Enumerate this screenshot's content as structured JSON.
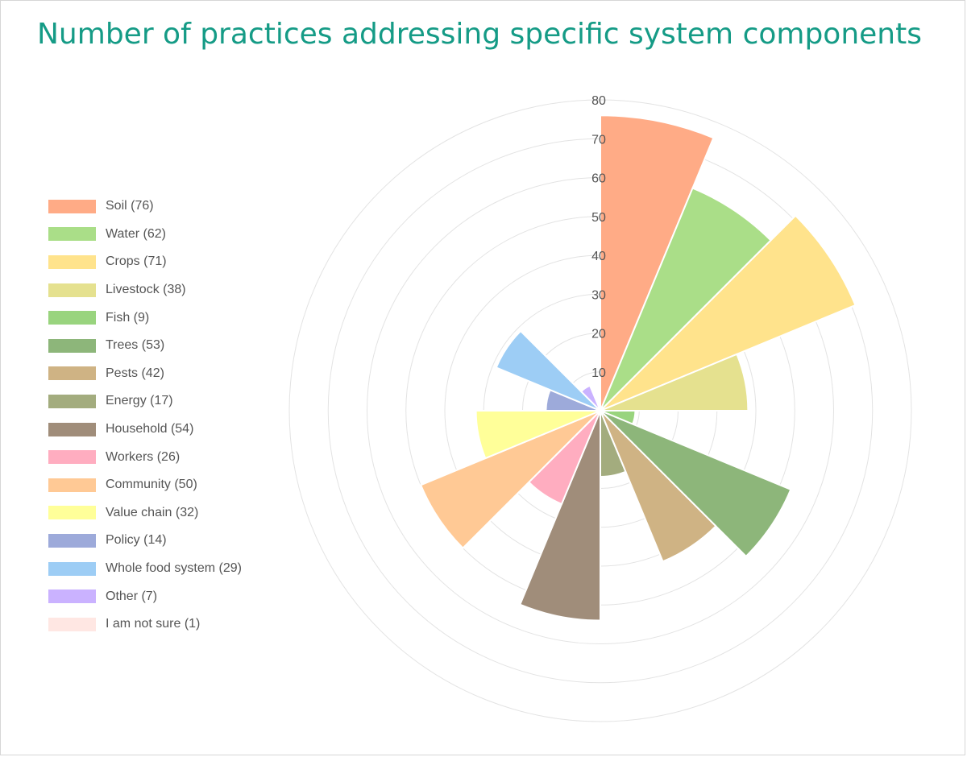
{
  "chart_data": {
    "type": "polar-area",
    "title": "Number of practices addressing specific system components",
    "rlim": [
      0,
      80
    ],
    "r_ticks": [
      10,
      20,
      30,
      40,
      50,
      60,
      70,
      80
    ],
    "grid": true,
    "legend_position": "left",
    "categories": [
      "Soil",
      "Water",
      "Crops",
      "Livestock",
      "Fish",
      "Trees",
      "Pests",
      "Energy",
      "Household",
      "Workers",
      "Community",
      "Value chain",
      "Policy",
      "Whole food system",
      "Other",
      "I am not sure"
    ],
    "values": [
      76,
      62,
      71,
      38,
      9,
      53,
      42,
      17,
      54,
      26,
      50,
      32,
      14,
      29,
      7,
      1
    ],
    "legend_labels": [
      "Soil (76)",
      "Water (62)",
      "Crops (71)",
      "Livestock (38)",
      "Fish (9)",
      "Trees (53)",
      "Pests (42)",
      "Energy (17)",
      "Household (54)",
      "Workers (26)",
      "Community (50)",
      "Value chain (32)",
      "Policy (14)",
      "Whole food system (29)",
      "Other (7)",
      "I am not sure (1)"
    ],
    "colors": [
      "#ffab86",
      "#aade88",
      "#ffe38c",
      "#e5e18f",
      "#99d47e",
      "#8db67a",
      "#cfb384",
      "#a3ac7e",
      "#a08d7a",
      "#ffadc0",
      "#ffc995",
      "#ffff99",
      "#9daada",
      "#9dcdf5",
      "#cab2ff",
      "#ffe7e3"
    ]
  }
}
